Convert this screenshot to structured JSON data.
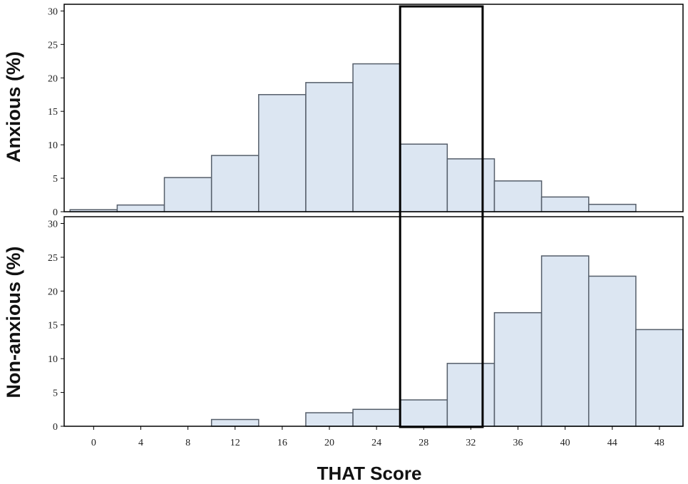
{
  "chart_data": {
    "type": "bar",
    "xlabel": "THAT Score",
    "x_ticks": [
      0,
      4,
      8,
      12,
      16,
      20,
      24,
      28,
      32,
      36,
      40,
      44,
      48
    ],
    "bin_width": 4,
    "xlim": [
      -2.5,
      50
    ],
    "ylim": [
      0,
      31
    ],
    "y_ticks": [
      0,
      5,
      10,
      15,
      20,
      25,
      30
    ],
    "highlight_range": [
      26,
      33
    ],
    "panels": [
      {
        "ylabel": "Anxious (%)",
        "bins": [
          {
            "x0": -2,
            "x1": 2,
            "value": 0.3
          },
          {
            "x0": 2,
            "x1": 6,
            "value": 1.0
          },
          {
            "x0": 6,
            "x1": 10,
            "value": 5.1
          },
          {
            "x0": 10,
            "x1": 14,
            "value": 8.4
          },
          {
            "x0": 14,
            "x1": 18,
            "value": 17.5
          },
          {
            "x0": 18,
            "x1": 22,
            "value": 19.3
          },
          {
            "x0": 22,
            "x1": 26,
            "value": 22.1
          },
          {
            "x0": 26,
            "x1": 30,
            "value": 10.1
          },
          {
            "x0": 30,
            "x1": 34,
            "value": 7.9
          },
          {
            "x0": 34,
            "x1": 38,
            "value": 4.6
          },
          {
            "x0": 38,
            "x1": 42,
            "value": 2.2
          },
          {
            "x0": 42,
            "x1": 46,
            "value": 1.1
          }
        ]
      },
      {
        "ylabel": "Non-anxious (%)",
        "bins": [
          {
            "x0": 10,
            "x1": 14,
            "value": 1.0
          },
          {
            "x0": 18,
            "x1": 22,
            "value": 2.0
          },
          {
            "x0": 22,
            "x1": 26,
            "value": 2.5
          },
          {
            "x0": 26,
            "x1": 30,
            "value": 3.9
          },
          {
            "x0": 30,
            "x1": 34,
            "value": 9.3
          },
          {
            "x0": 34,
            "x1": 38,
            "value": 16.8
          },
          {
            "x0": 38,
            "x1": 42,
            "value": 25.2
          },
          {
            "x0": 42,
            "x1": 46,
            "value": 22.2
          },
          {
            "x0": 46,
            "x1": 50,
            "value": 14.3
          }
        ]
      }
    ],
    "colors": {
      "bar_fill": "#dce6f2",
      "bar_stroke": "#555e6a",
      "frame": "#000000"
    }
  }
}
